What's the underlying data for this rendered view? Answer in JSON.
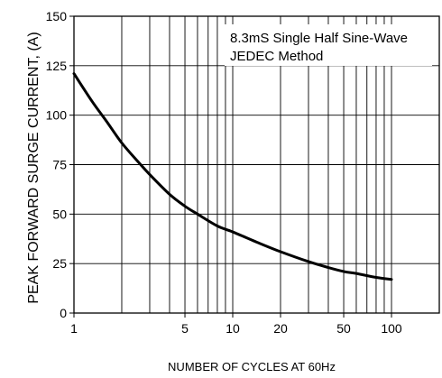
{
  "chart_data": {
    "type": "line",
    "xlabel": "NUMBER OF CYCLES AT 60Hz",
    "ylabel": "PEAK  FORWARD SURGE CURRENT, (A)",
    "annotations": [
      "8.3mS Single Half Sine-Wave",
      "JEDEC Method"
    ],
    "x_scale": "log",
    "xlim": [
      1,
      200
    ],
    "ylim": [
      0,
      150
    ],
    "grid": true,
    "x_ticks": [
      {
        "value": 1,
        "label": "1"
      },
      {
        "value": 5,
        "label": "5"
      },
      {
        "value": 10,
        "label": "10"
      },
      {
        "value": 20,
        "label": "20"
      },
      {
        "value": 50,
        "label": "50"
      },
      {
        "value": 100,
        "label": "100"
      }
    ],
    "y_ticks": [
      {
        "value": 0,
        "label": "0"
      },
      {
        "value": 25,
        "label": "25"
      },
      {
        "value": 50,
        "label": "50"
      },
      {
        "value": 75,
        "label": "75"
      },
      {
        "value": 100,
        "label": "100"
      },
      {
        "value": 125,
        "label": "125"
      },
      {
        "value": 150,
        "label": "150"
      }
    ],
    "series": [
      {
        "x": [
          1,
          1.3,
          1.6,
          2,
          2.5,
          3,
          4,
          5,
          6,
          8,
          10,
          15,
          20,
          30,
          40,
          50,
          60,
          80,
          100
        ],
        "y": [
          121,
          107,
          97,
          86,
          77,
          70,
          60,
          54,
          50,
          44,
          41,
          35,
          31,
          26,
          23,
          21,
          20,
          18,
          17
        ]
      }
    ]
  }
}
